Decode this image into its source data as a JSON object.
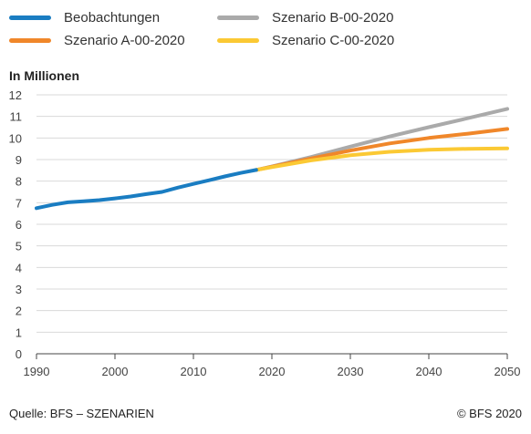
{
  "chart_data": {
    "type": "line",
    "ylabel": "In Millionen",
    "xlim": [
      1990,
      2050
    ],
    "ylim": [
      0,
      12
    ],
    "x_ticks": [
      1990,
      2000,
      2010,
      2020,
      2030,
      2040,
      2050
    ],
    "y_ticks": [
      0,
      1,
      2,
      3,
      4,
      5,
      6,
      7,
      8,
      9,
      10,
      11,
      12
    ],
    "grid": "horizontal",
    "legend_position": "top",
    "series": [
      {
        "name": "Beobachtungen",
        "color": "#1a7dc2",
        "x": [
          1990,
          1992,
          1994,
          1996,
          1998,
          2000,
          2002,
          2004,
          2006,
          2008,
          2010,
          2012,
          2014,
          2016,
          2018
        ],
        "y": [
          6.75,
          6.9,
          7.02,
          7.07,
          7.12,
          7.2,
          7.29,
          7.4,
          7.5,
          7.7,
          7.87,
          8.04,
          8.22,
          8.38,
          8.52
        ]
      },
      {
        "name": "Szenario B-00-2020",
        "color": "#aaaaaa",
        "x": [
          2018,
          2020,
          2025,
          2030,
          2035,
          2040,
          2045,
          2050
        ],
        "y": [
          8.52,
          8.68,
          9.12,
          9.6,
          10.07,
          10.5,
          10.92,
          11.35
        ]
      },
      {
        "name": "Szenario A-00-2020",
        "color": "#f0872a",
        "x": [
          2018,
          2020,
          2025,
          2030,
          2035,
          2040,
          2045,
          2050
        ],
        "y": [
          8.52,
          8.67,
          9.05,
          9.42,
          9.75,
          10.0,
          10.2,
          10.42
        ]
      },
      {
        "name": "Szenario C-00-2020",
        "color": "#fbc934",
        "x": [
          2018,
          2020,
          2025,
          2030,
          2035,
          2040,
          2045,
          2050
        ],
        "y": [
          8.52,
          8.65,
          8.96,
          9.2,
          9.36,
          9.45,
          9.5,
          9.52
        ]
      }
    ]
  },
  "footer": {
    "source": "Quelle: BFS – SZENARIEN",
    "copyright": "© BFS 2020"
  },
  "colors": {
    "grid": "#d9d9d9",
    "axis": "#444444",
    "tick_text": "#444444"
  }
}
